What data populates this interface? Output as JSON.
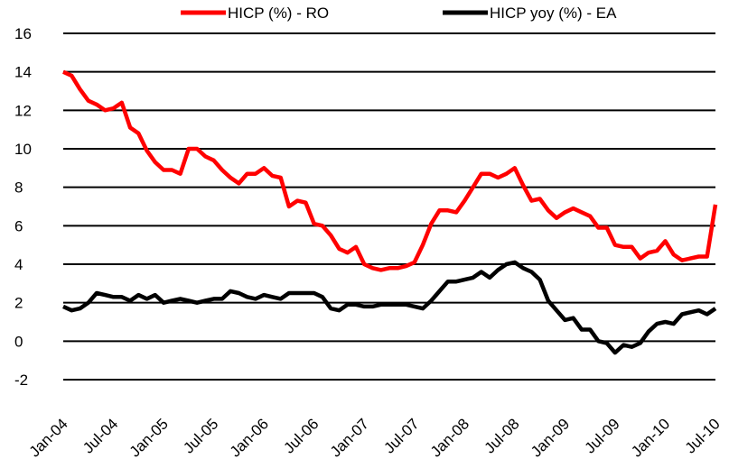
{
  "chart_data": {
    "type": "line",
    "categories": [
      "Jan-04",
      null,
      null,
      null,
      null,
      null,
      "Jul-04",
      null,
      null,
      null,
      null,
      null,
      "Jan-05",
      null,
      null,
      null,
      null,
      null,
      "Jul-05",
      null,
      null,
      null,
      null,
      null,
      "Jan-06",
      null,
      null,
      null,
      null,
      null,
      "Jul-06",
      null,
      null,
      null,
      null,
      null,
      "Jan-07",
      null,
      null,
      null,
      null,
      null,
      "Jul-07",
      null,
      null,
      null,
      null,
      null,
      "Jan-08",
      null,
      null,
      null,
      null,
      null,
      "Jul-08",
      null,
      null,
      null,
      null,
      null,
      "Jan-09",
      null,
      null,
      null,
      null,
      null,
      "Jul-09",
      null,
      null,
      null,
      null,
      null,
      "Jan-10",
      null,
      null,
      null,
      null,
      null,
      "Jul-10"
    ],
    "series": [
      {
        "name": "HICP (%)  - RO",
        "color": "#ff0000",
        "values": [
          14.0,
          13.8,
          13.1,
          12.5,
          12.3,
          12.0,
          12.1,
          12.4,
          11.1,
          10.8,
          9.9,
          9.3,
          8.9,
          8.9,
          8.7,
          10.0,
          10.0,
          9.6,
          9.4,
          8.9,
          8.5,
          8.2,
          8.7,
          8.7,
          9.0,
          8.6,
          8.5,
          7.0,
          7.3,
          7.2,
          6.1,
          6.0,
          5.5,
          4.8,
          4.6,
          4.9,
          4.0,
          3.8,
          3.7,
          3.8,
          3.8,
          3.9,
          4.1,
          5.0,
          6.1,
          6.8,
          6.8,
          6.7,
          7.3,
          8.0,
          8.7,
          8.7,
          8.5,
          8.7,
          9.0,
          8.1,
          7.3,
          7.4,
          6.8,
          6.4,
          6.7,
          6.9,
          6.7,
          6.5,
          5.9,
          5.9,
          5.0,
          4.9,
          4.9,
          4.3,
          4.6,
          4.7,
          5.2,
          4.5,
          4.2,
          4.3,
          4.4,
          4.4,
          7.1
        ]
      },
      {
        "name": "HICP yoy (%) - EA",
        "color": "#000000",
        "values": [
          1.8,
          1.6,
          1.7,
          2.0,
          2.5,
          2.4,
          2.3,
          2.3,
          2.1,
          2.4,
          2.2,
          2.4,
          2.0,
          2.1,
          2.2,
          2.1,
          2.0,
          2.1,
          2.2,
          2.2,
          2.6,
          2.5,
          2.3,
          2.2,
          2.4,
          2.3,
          2.2,
          2.5,
          2.5,
          2.5,
          2.5,
          2.3,
          1.7,
          1.6,
          1.9,
          1.9,
          1.8,
          1.8,
          1.9,
          1.9,
          1.9,
          1.9,
          1.8,
          1.7,
          2.1,
          2.6,
          3.1,
          3.1,
          3.2,
          3.3,
          3.6,
          3.3,
          3.7,
          4.0,
          4.1,
          3.8,
          3.6,
          3.2,
          2.1,
          1.6,
          1.1,
          1.2,
          0.6,
          0.6,
          0.0,
          -0.1,
          -0.6,
          -0.2,
          -0.3,
          -0.1,
          0.5,
          0.9,
          1.0,
          0.9,
          1.4,
          1.5,
          1.6,
          1.4,
          1.7
        ]
      }
    ],
    "ylim": [
      -2,
      16
    ],
    "yticks": [
      -2,
      0,
      2,
      4,
      6,
      8,
      10,
      12,
      14,
      16
    ],
    "grid": true,
    "legend": "top"
  }
}
